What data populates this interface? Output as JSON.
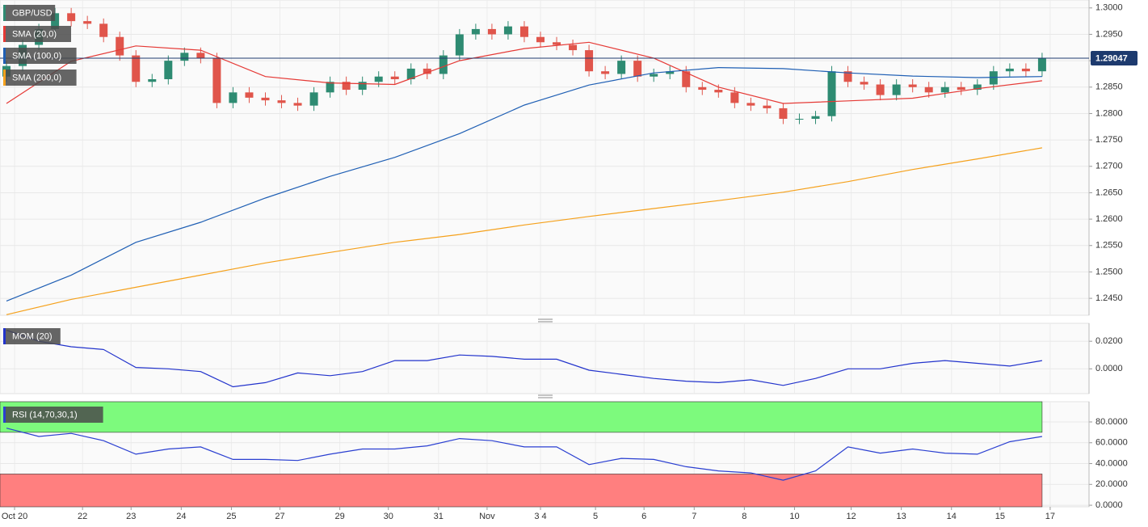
{
  "chart_data": [
    {
      "type": "candlestick",
      "title": "GBP/USD",
      "colors": {
        "up": "#2e8b72",
        "down": "#e0554b"
      },
      "open": [
        1.287,
        1.289,
        1.293,
        1.296,
        1.299,
        1.2975,
        1.297,
        1.2945,
        1.291,
        1.286,
        1.2865,
        1.29,
        1.2915,
        1.2905,
        1.282,
        1.284,
        1.283,
        1.2825,
        1.282,
        1.2815,
        1.284,
        1.286,
        1.2845,
        1.286,
        1.287,
        1.2865,
        1.2885,
        1.2875,
        1.291,
        1.295,
        1.296,
        1.295,
        1.2965,
        1.2945,
        1.2935,
        1.293,
        1.292,
        1.288,
        1.2875,
        1.29,
        1.287,
        1.2875,
        1.288,
        1.285,
        1.2845,
        1.284,
        1.282,
        1.2815,
        1.281,
        1.279,
        1.279,
        1.2795,
        1.288,
        1.286,
        1.2855,
        1.2835,
        1.2855,
        1.285,
        1.284,
        1.285,
        1.2845,
        1.2855,
        1.288,
        1.2885,
        1.288
      ],
      "high": [
        1.29,
        1.294,
        1.297,
        1.3,
        1.3,
        1.2985,
        1.298,
        1.2955,
        1.292,
        1.2875,
        1.291,
        1.2925,
        1.2925,
        1.2915,
        1.285,
        1.285,
        1.284,
        1.2835,
        1.283,
        1.285,
        1.287,
        1.287,
        1.287,
        1.288,
        1.288,
        1.2895,
        1.2895,
        1.292,
        1.296,
        1.297,
        1.297,
        1.2975,
        1.2975,
        1.2955,
        1.2945,
        1.294,
        1.293,
        1.289,
        1.291,
        1.291,
        1.2885,
        1.289,
        1.289,
        1.286,
        1.2855,
        1.285,
        1.283,
        1.2825,
        1.282,
        1.28,
        1.2805,
        1.289,
        1.289,
        1.287,
        1.2865,
        1.2865,
        1.2865,
        1.286,
        1.286,
        1.286,
        1.2865,
        1.289,
        1.2895,
        1.2895,
        1.2915
      ],
      "low": [
        1.286,
        1.288,
        1.292,
        1.295,
        1.2965,
        1.296,
        1.2935,
        1.29,
        1.285,
        1.285,
        1.2855,
        1.289,
        1.2895,
        1.281,
        1.281,
        1.282,
        1.2815,
        1.281,
        1.2805,
        1.2805,
        1.283,
        1.2835,
        1.2835,
        1.285,
        1.2855,
        1.2855,
        1.2865,
        1.2865,
        1.29,
        1.294,
        1.294,
        1.294,
        1.2935,
        1.2925,
        1.292,
        1.291,
        1.287,
        1.2865,
        1.2865,
        1.286,
        1.286,
        1.2865,
        1.284,
        1.2835,
        1.283,
        1.281,
        1.2805,
        1.28,
        1.278,
        1.278,
        1.278,
        1.2785,
        1.285,
        1.2845,
        1.2825,
        1.2825,
        1.284,
        1.283,
        1.283,
        1.2835,
        1.2835,
        1.2845,
        1.287,
        1.287,
        1.287
      ],
      "close": [
        1.289,
        1.293,
        1.296,
        1.299,
        1.2975,
        1.297,
        1.2945,
        1.291,
        1.286,
        1.2865,
        1.29,
        1.2915,
        1.2905,
        1.282,
        1.284,
        1.283,
        1.2825,
        1.282,
        1.2815,
        1.284,
        1.286,
        1.2845,
        1.286,
        1.287,
        1.2865,
        1.2885,
        1.2875,
        1.291,
        1.295,
        1.296,
        1.295,
        1.2965,
        1.2945,
        1.2935,
        1.293,
        1.292,
        1.288,
        1.2875,
        1.29,
        1.287,
        1.2875,
        1.288,
        1.285,
        1.2845,
        1.284,
        1.282,
        1.2815,
        1.281,
        1.279,
        1.279,
        1.2795,
        1.288,
        1.286,
        1.2855,
        1.2835,
        1.2855,
        1.285,
        1.284,
        1.285,
        1.2845,
        1.2855,
        1.288,
        1.2885,
        1.288,
        1.2905
      ],
      "series": [
        {
          "name": "SMA (20,0)",
          "color": "#e53935",
          "x": [
            0,
            4,
            8,
            12,
            16,
            20,
            24,
            28,
            32,
            36,
            40,
            44,
            48,
            52,
            56,
            60,
            64
          ],
          "values": [
            1.2819,
            1.2899,
            1.2928,
            1.292,
            1.287,
            1.2858,
            1.2855,
            1.29,
            1.2923,
            1.2935,
            1.2905,
            1.285,
            1.2819,
            1.2824,
            1.2829,
            1.2847,
            1.2862
          ]
        },
        {
          "name": "SMA (100,0)",
          "color": "#1f5fb4",
          "x": [
            0,
            4,
            8,
            12,
            16,
            20,
            24,
            28,
            32,
            36,
            40,
            44,
            48,
            52,
            56,
            60,
            64
          ],
          "values": [
            1.2445,
            1.2494,
            1.2556,
            1.2594,
            1.264,
            1.2681,
            1.2717,
            1.2762,
            1.2816,
            1.2854,
            1.2877,
            1.2887,
            1.2885,
            1.2877,
            1.2871,
            1.2868,
            1.287
          ]
        },
        {
          "name": "SMA (200,0)",
          "color": "#f5a11c",
          "x": [
            0,
            4,
            8,
            12,
            16,
            20,
            24,
            28,
            32,
            36,
            40,
            44,
            48,
            52,
            56,
            60,
            64
          ],
          "values": [
            1.2419,
            1.2448,
            1.2471,
            1.2494,
            1.2517,
            1.2537,
            1.2556,
            1.2571,
            1.2589,
            1.2605,
            1.262,
            1.2635,
            1.2651,
            1.2671,
            1.2694,
            1.2714,
            1.2735
          ]
        }
      ],
      "price_line": {
        "value": 1.29047,
        "color": "#1d3a6e"
      },
      "xlim": [
        -0.4,
        66.9
      ],
      "ylim": [
        1.2418,
        1.3015
      ],
      "yticks": [
        {
          "value": 1.245,
          "label": "1.2450"
        },
        {
          "value": 1.25,
          "label": "1.2500"
        },
        {
          "value": 1.255,
          "label": "1.2550"
        },
        {
          "value": 1.26,
          "label": "1.2600"
        },
        {
          "value": 1.265,
          "label": "1.2650"
        },
        {
          "value": 1.27,
          "label": "1.2700"
        },
        {
          "value": 1.275,
          "label": "1.2750"
        },
        {
          "value": 1.28,
          "label": "1.2800"
        },
        {
          "value": 1.285,
          "label": "1.2850"
        },
        {
          "value": 1.29,
          "label": "1.2900"
        },
        {
          "value": 1.295,
          "label": "1.2950"
        },
        {
          "value": 1.3,
          "label": "1.3000"
        }
      ],
      "grid": true
    },
    {
      "type": "line",
      "series": [
        {
          "name": "MOM (20)",
          "color": "#2233cc",
          "x": [
            0,
            2,
            4,
            6,
            8,
            10,
            12,
            14,
            16,
            18,
            20,
            22,
            24,
            26,
            28,
            30,
            32,
            34,
            36,
            38,
            40,
            42,
            44,
            46,
            48,
            50,
            52,
            54,
            56,
            58,
            60,
            62,
            64
          ],
          "values": [
            0.028,
            0.02,
            0.016,
            0.014,
            0.001,
            0.0,
            -0.002,
            -0.013,
            -0.01,
            -0.003,
            -0.005,
            -0.002,
            0.006,
            0.006,
            0.01,
            0.009,
            0.007,
            0.007,
            -0.001,
            -0.004,
            -0.007,
            -0.009,
            -0.01,
            -0.008,
            -0.012,
            -0.007,
            0.0,
            0.0,
            0.004,
            0.006,
            0.004,
            0.002,
            0.006
          ]
        }
      ],
      "xlim": [
        -0.4,
        66.9
      ],
      "ylim": [
        -0.018,
        0.033
      ],
      "yticks": [
        {
          "value": 0,
          "label": "0.0000"
        },
        {
          "value": 0.02,
          "label": "0.0200"
        }
      ],
      "grid": true
    },
    {
      "type": "line",
      "series": [
        {
          "name": "RSI (14,70,30,1)",
          "color": "#2a3fd1",
          "x": [
            0,
            2,
            4,
            6,
            8,
            10,
            12,
            14,
            16,
            18,
            20,
            22,
            24,
            26,
            28,
            30,
            32,
            34,
            36,
            38,
            40,
            42,
            44,
            46,
            48,
            50,
            52,
            54,
            56,
            58,
            60,
            62,
            64
          ],
          "values": [
            74,
            66,
            69,
            62,
            49,
            54,
            56,
            44,
            44,
            43,
            49,
            54,
            54,
            57,
            64,
            62,
            56,
            56,
            39,
            45,
            44,
            37,
            33,
            31,
            24,
            33,
            56,
            50,
            54,
            50,
            49,
            61,
            66
          ]
        }
      ],
      "overbought": 70,
      "oversold": 30,
      "band_colors": {
        "overbought": "#7dfa7d",
        "oversold": "#ff7f7f"
      },
      "xlim": [
        -0.4,
        66.9
      ],
      "ylim": [
        -1.5,
        99.4
      ],
      "yticks": [
        {
          "value": 0,
          "label": "0.0000"
        },
        {
          "value": 20,
          "label": "20.0000"
        },
        {
          "value": 40,
          "label": "40.0000"
        },
        {
          "value": 60,
          "label": "60.0000"
        },
        {
          "value": 80,
          "label": "80.0000"
        }
      ],
      "xticks": [
        {
          "value": 0.5,
          "label": "Oct 20"
        },
        {
          "value": 4.7,
          "label": "22"
        },
        {
          "value": 7.7,
          "label": "23"
        },
        {
          "value": 10.8,
          "label": "24"
        },
        {
          "value": 13.9,
          "label": "25"
        },
        {
          "value": 16.9,
          "label": "27"
        },
        {
          "value": 20.6,
          "label": "29"
        },
        {
          "value": 23.6,
          "label": "30"
        },
        {
          "value": 26.7,
          "label": "31"
        },
        {
          "value": 29.7,
          "label": "Nov"
        },
        {
          "value": 33,
          "label": "3 4"
        },
        {
          "value": 36.4,
          "label": "5"
        },
        {
          "value": 39.4,
          "label": "6"
        },
        {
          "value": 42.5,
          "label": "7"
        },
        {
          "value": 45.6,
          "label": "8"
        },
        {
          "value": 48.7,
          "label": "10"
        },
        {
          "value": 52.2,
          "label": "12"
        },
        {
          "value": 55.3,
          "label": "13"
        },
        {
          "value": 58.4,
          "label": "14"
        },
        {
          "value": 61.4,
          "label": "15"
        },
        {
          "value": 64.5,
          "label": "17"
        }
      ],
      "grid": true
    }
  ]
}
